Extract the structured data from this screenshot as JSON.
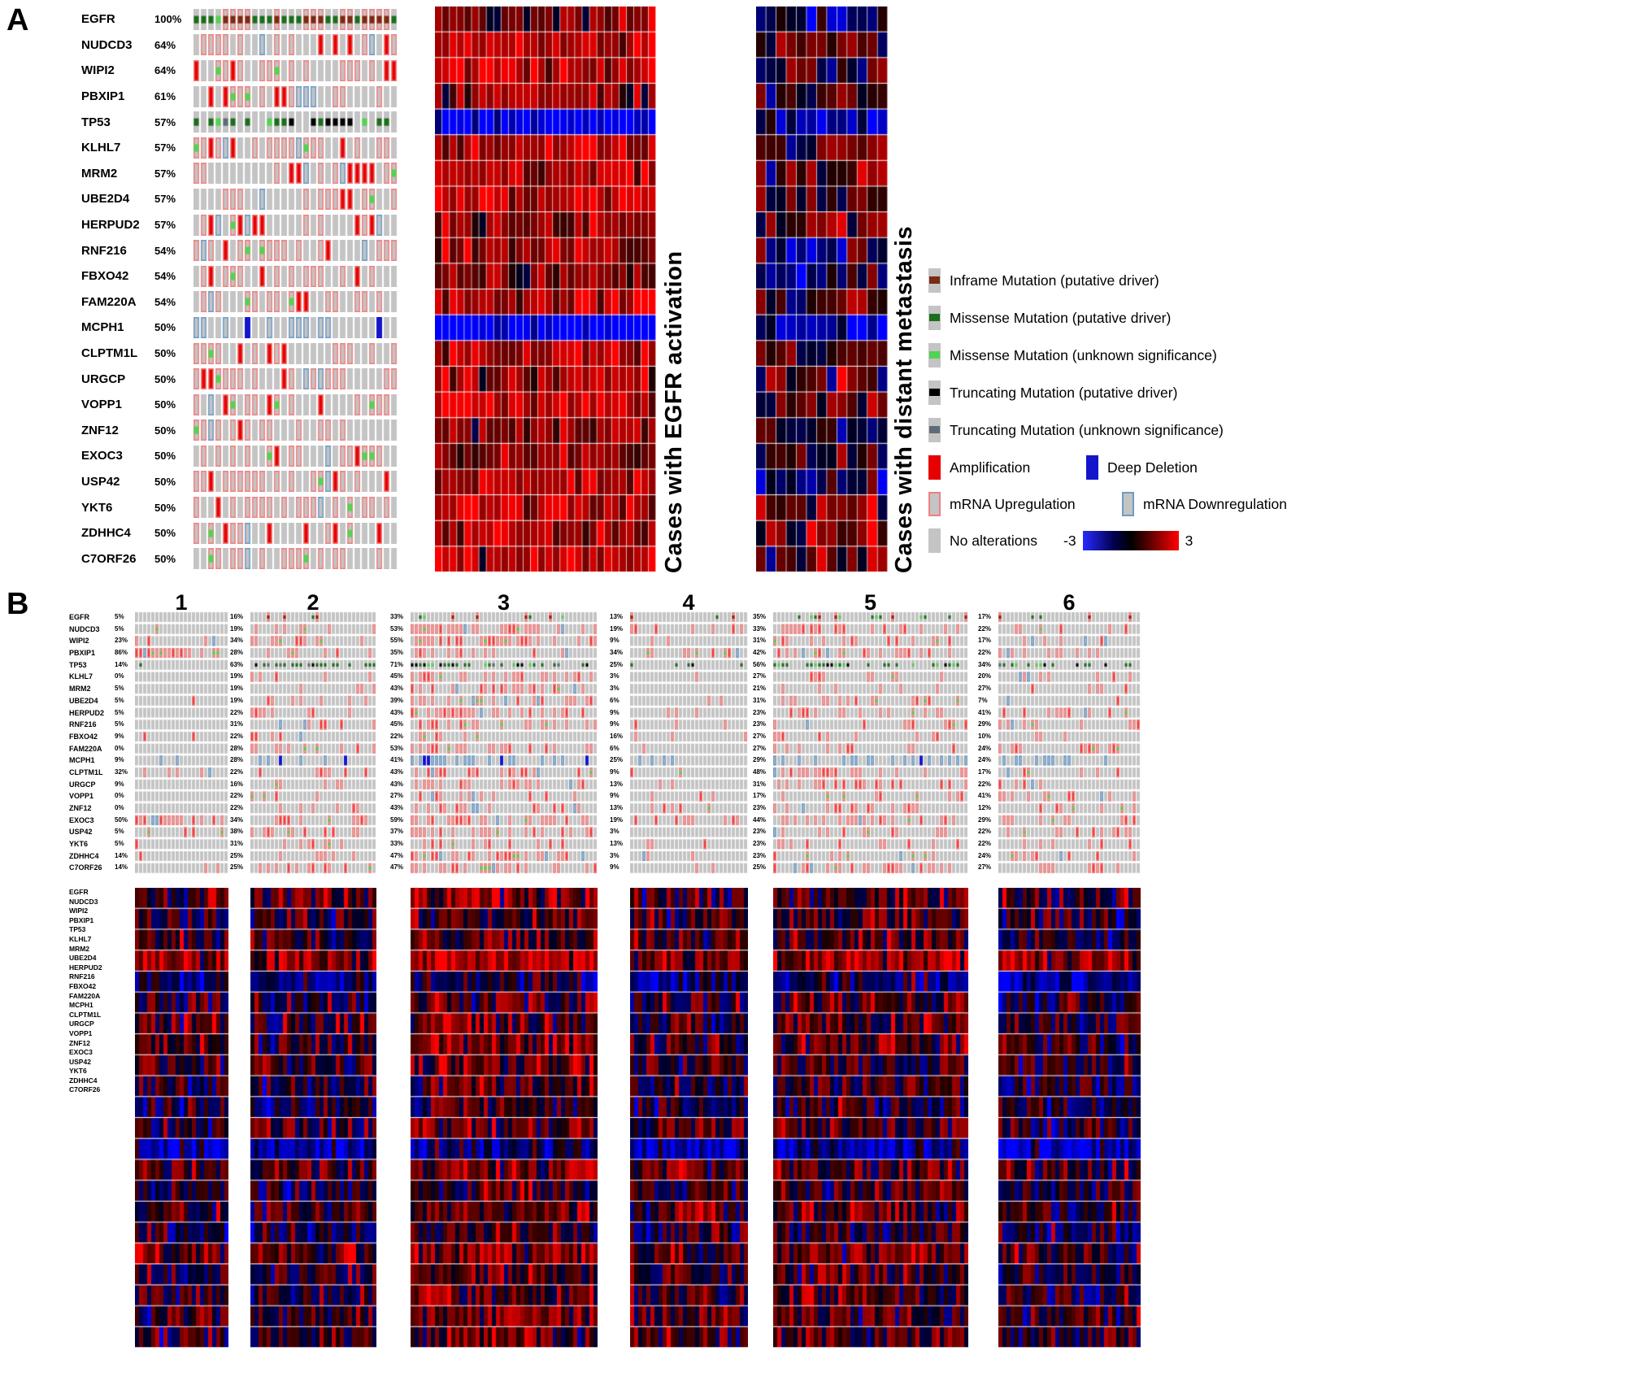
{
  "figure": {
    "panel_a_label": "A",
    "panel_b_label": "B"
  },
  "genes": [
    "EGFR",
    "NUDCD3",
    "WIPI2",
    "PBXIP1",
    "TP53",
    "KLHL7",
    "MRM2",
    "UBE2D4",
    "HERPUD2",
    "RNF216",
    "FBXO42",
    "FAM220A",
    "MCPH1",
    "CLPTM1L",
    "URGCP",
    "VOPP1",
    "ZNF12",
    "EXOC3",
    "USP42",
    "YKT6",
    "ZDHHC4",
    "C7ORF26"
  ],
  "panel_a": {
    "pcts": [
      "100%",
      "64%",
      "64%",
      "61%",
      "57%",
      "57%",
      "57%",
      "57%",
      "57%",
      "54%",
      "54%",
      "54%",
      "50%",
      "50%",
      "50%",
      "50%",
      "50%",
      "50%",
      "50%",
      "50%",
      "50%",
      "50%"
    ],
    "heatmap1_title": "Cases with EGFR activation",
    "heatmap2_title": "Cases with distant metastasis",
    "legend": {
      "mutations": [
        {
          "label": "Inframe Mutation (putative driver)"
        },
        {
          "label": "Missense Mutation (putative driver)"
        },
        {
          "label": "Missense Mutation (unknown significance)"
        },
        {
          "label": "Truncating Mutation (putative driver)"
        },
        {
          "label": "Truncating Mutation (unknown significance)"
        }
      ],
      "cna": [
        {
          "label": "Amplification"
        },
        {
          "label": "Deep Deletion"
        }
      ],
      "mrna": [
        {
          "label": "mRNA Upregulation"
        },
        {
          "label": "mRNA Downregulation"
        }
      ],
      "none_label": "No alterations",
      "scale_min": "-3",
      "scale_max": "3"
    }
  },
  "panel_b": {
    "groups": [
      {
        "number": "1",
        "cols": 23,
        "pcts": [
          "5%",
          "5%",
          "23%",
          "86%",
          "14%",
          "0%",
          "5%",
          "5%",
          "5%",
          "5%",
          "9%",
          "0%",
          "9%",
          "32%",
          "9%",
          "0%",
          "0%",
          "50%",
          "5%",
          "5%",
          "14%",
          "14%"
        ]
      },
      {
        "number": "2",
        "cols": 31,
        "pcts": [
          "16%",
          "19%",
          "34%",
          "28%",
          "63%",
          "19%",
          "19%",
          "19%",
          "22%",
          "31%",
          "22%",
          "28%",
          "28%",
          "22%",
          "16%",
          "22%",
          "22%",
          "34%",
          "38%",
          "31%",
          "25%",
          "25%"
        ]
      },
      {
        "number": "3",
        "cols": 46,
        "pcts": [
          "33%",
          "53%",
          "55%",
          "35%",
          "71%",
          "45%",
          "43%",
          "39%",
          "43%",
          "45%",
          "22%",
          "53%",
          "41%",
          "43%",
          "43%",
          "27%",
          "43%",
          "59%",
          "37%",
          "33%",
          "47%",
          "47%"
        ]
      },
      {
        "number": "4",
        "cols": 29,
        "pcts": [
          "13%",
          "19%",
          "9%",
          "34%",
          "25%",
          "3%",
          "3%",
          "6%",
          "9%",
          "9%",
          "16%",
          "6%",
          "25%",
          "9%",
          "13%",
          "9%",
          "13%",
          "19%",
          "3%",
          "13%",
          "3%",
          "9%"
        ]
      },
      {
        "number": "5",
        "cols": 48,
        "pcts": [
          "35%",
          "33%",
          "31%",
          "42%",
          "56%",
          "27%",
          "21%",
          "31%",
          "23%",
          "23%",
          "27%",
          "27%",
          "29%",
          "48%",
          "31%",
          "17%",
          "23%",
          "44%",
          "23%",
          "23%",
          "23%",
          "25%"
        ]
      },
      {
        "number": "6",
        "cols": 35,
        "pcts": [
          "17%",
          "22%",
          "17%",
          "22%",
          "34%",
          "20%",
          "27%",
          "7%",
          "41%",
          "29%",
          "10%",
          "24%",
          "24%",
          "17%",
          "22%",
          "41%",
          "12%",
          "29%",
          "22%",
          "22%",
          "24%",
          "27%"
        ]
      }
    ]
  },
  "colors": {
    "no_alteration": "#c4c4c4",
    "amplification": "#e60000",
    "deep_deletion": "#1414cc",
    "mrna_up_stroke": "#f08080",
    "mrna_down_stroke": "#6e9bc5",
    "inframe": "#7b2a13",
    "missense_driver": "#1b6e1b",
    "missense_unknown": "#53d353",
    "truncating_driver": "#000000",
    "truncating_unknown": "#5f6b76"
  },
  "render": {
    "a_cols": 28,
    "profiles": {
      "EGFR": "egfr",
      "TP53": "mut",
      "MCPH1": "down"
    },
    "heatmap1_cols": 30,
    "heatmap2_cols": 13,
    "heatmap1_bias": [
      1.0,
      1.8,
      1.8,
      1.1,
      -2.2,
      1.5,
      1.5,
      1.8,
      1.2,
      1.3,
      0.8,
      1.5,
      -2.6,
      1.6,
      1.6,
      1.9,
      1.1,
      1.2,
      1.5,
      1.9,
      1.6,
      1.7
    ],
    "heatmap2_bias": [
      -0.4,
      0.8,
      0.5,
      0.3,
      -1.6,
      0.5,
      0.6,
      0.4,
      0.2,
      -0.3,
      -0.8,
      0.5,
      -1.9,
      0.8,
      0.2,
      0.6,
      -0.2,
      0.3,
      -0.4,
      0.5,
      0.3,
      0.6
    ],
    "b_row_bias": [
      0.3,
      0.0,
      0.2,
      1.2,
      -0.9,
      0.0,
      0.2,
      0.3,
      0.2,
      0.0,
      -0.3,
      0.2,
      -1.6,
      0.5,
      0.0,
      0.3,
      -0.2,
      0.5,
      0.0,
      0.2,
      0.3,
      0.2
    ],
    "b_group_bias": [
      0.0,
      -0.1,
      0.5,
      0.0,
      0.3,
      -0.15
    ]
  },
  "chart_data": [
    {
      "type": "heatmap",
      "title": "Panel A oncoprint: alteration frequency per gene",
      "rows": [
        "EGFR",
        "NUDCD3",
        "WIPI2",
        "PBXIP1",
        "TP53",
        "KLHL7",
        "MRM2",
        "UBE2D4",
        "HERPUD2",
        "RNF216",
        "FBXO42",
        "FAM220A",
        "MCPH1",
        "CLPTM1L",
        "URGCP",
        "VOPP1",
        "ZNF12",
        "EXOC3",
        "USP42",
        "YKT6",
        "ZDHHC4",
        "C7ORF26"
      ],
      "values_percent": [
        100,
        64,
        64,
        61,
        57,
        57,
        57,
        57,
        57,
        54,
        54,
        54,
        50,
        50,
        50,
        50,
        50,
        50,
        50,
        50,
        50,
        50
      ],
      "column_groups": [
        "Cases with EGFR activation",
        "Cases with distant metastasis"
      ],
      "value_scale": {
        "min": -3,
        "max": 3,
        "colormap": "blue-black-red"
      },
      "legend_position": "right"
    },
    {
      "type": "heatmap",
      "title": "Panel B oncoprints: alteration frequency per gene by group",
      "rows": [
        "EGFR",
        "NUDCD3",
        "WIPI2",
        "PBXIP1",
        "TP53",
        "KLHL7",
        "MRM2",
        "UBE2D4",
        "HERPUD2",
        "RNF216",
        "FBXO42",
        "FAM220A",
        "MCPH1",
        "CLPTM1L",
        "URGCP",
        "VOPP1",
        "ZNF12",
        "EXOC3",
        "USP42",
        "YKT6",
        "ZDHHC4",
        "C7ORF26"
      ],
      "series": [
        {
          "name": "1",
          "values_percent": [
            5,
            5,
            23,
            86,
            14,
            0,
            5,
            5,
            5,
            5,
            9,
            0,
            9,
            32,
            9,
            0,
            0,
            50,
            5,
            5,
            14,
            14
          ]
        },
        {
          "name": "2",
          "values_percent": [
            16,
            19,
            34,
            28,
            63,
            19,
            19,
            19,
            22,
            31,
            22,
            28,
            28,
            22,
            16,
            22,
            22,
            34,
            38,
            31,
            25,
            25
          ]
        },
        {
          "name": "3",
          "values_percent": [
            33,
            53,
            55,
            35,
            71,
            45,
            43,
            39,
            43,
            45,
            22,
            53,
            41,
            43,
            43,
            27,
            43,
            59,
            37,
            33,
            47,
            47
          ]
        },
        {
          "name": "4",
          "values_percent": [
            13,
            19,
            9,
            34,
            25,
            3,
            3,
            6,
            9,
            9,
            16,
            6,
            25,
            9,
            13,
            9,
            13,
            19,
            3,
            13,
            3,
            9
          ]
        },
        {
          "name": "5",
          "values_percent": [
            35,
            33,
            31,
            42,
            56,
            27,
            21,
            31,
            23,
            23,
            27,
            27,
            29,
            48,
            31,
            17,
            23,
            44,
            23,
            23,
            23,
            25
          ]
        },
        {
          "name": "6",
          "values_percent": [
            17,
            22,
            17,
            22,
            34,
            20,
            27,
            7,
            41,
            29,
            10,
            24,
            24,
            17,
            22,
            41,
            12,
            29,
            22,
            22,
            24,
            27
          ]
        }
      ],
      "value_scale": {
        "min": -3,
        "max": 3,
        "colormap": "blue-black-red"
      }
    }
  ]
}
